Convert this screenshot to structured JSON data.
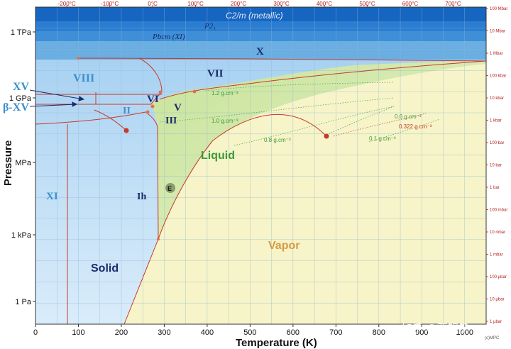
{
  "figure": {
    "x_axis_title": "Temperature (K)",
    "y_axis_title": "Pressure",
    "x_ticks": [
      "0",
      "100",
      "200",
      "300",
      "400",
      "500",
      "600",
      "700",
      "800",
      "900",
      "1000"
    ],
    "x_ticks_celsius": [
      "-200°C",
      "-100°C",
      "0°C",
      "100°C",
      "200°C",
      "300°C",
      "400°C",
      "500°C",
      "600°C",
      "700°C"
    ],
    "y_ticks": [
      "1 TPa",
      "1 GPa",
      "MPa",
      "1 kPa",
      "1 Pa"
    ],
    "y_ticks_bar": [
      "100 Mbar",
      "10 Mbar",
      "1 Mbar",
      "100 kbar",
      "10 kbar",
      "1 kbar",
      "100 bar",
      "10 bar",
      "1 bar",
      "100 mbar",
      "10 mbar",
      "1 mbar",
      "100 µbar",
      "10 µbar",
      "1 µbar"
    ],
    "credit": "(c)MPC",
    "watermark": "知乎 @贾明子"
  },
  "phases": {
    "c2m": "C2/m (metallic)",
    "p21": "P2₁",
    "pbcm": "Pbcm (XI)",
    "x": "X",
    "vii": "VII",
    "viii": "VIII",
    "xv": "XV",
    "bxv": "β-XV",
    "vi": "VI",
    "v": "V",
    "ii": "II",
    "iii": "III",
    "xi": "XI",
    "ih": "Ih",
    "e": "E",
    "liquid": "Liquid",
    "vapor": "Vapor",
    "solid": "Solid"
  },
  "densities": [
    "1.2 g.cm⁻³",
    "1.0 g.cm⁻³",
    "0.8 g.cm⁻³",
    "0.6 g.cm⁻³",
    "0.322 g.cm⁻³",
    "0.1 g.cm⁻³"
  ],
  "colors": {
    "solid_blue": "#bfe0f7",
    "high_pressure_blue": "#2f7fd0",
    "liquid_green": "#d6ebb0",
    "vapor_yellow": "#f7f5cc",
    "boundary_red": "#c8392d",
    "liquid_label": "#3a9a3a",
    "vapor_label": "#d79a45"
  }
}
